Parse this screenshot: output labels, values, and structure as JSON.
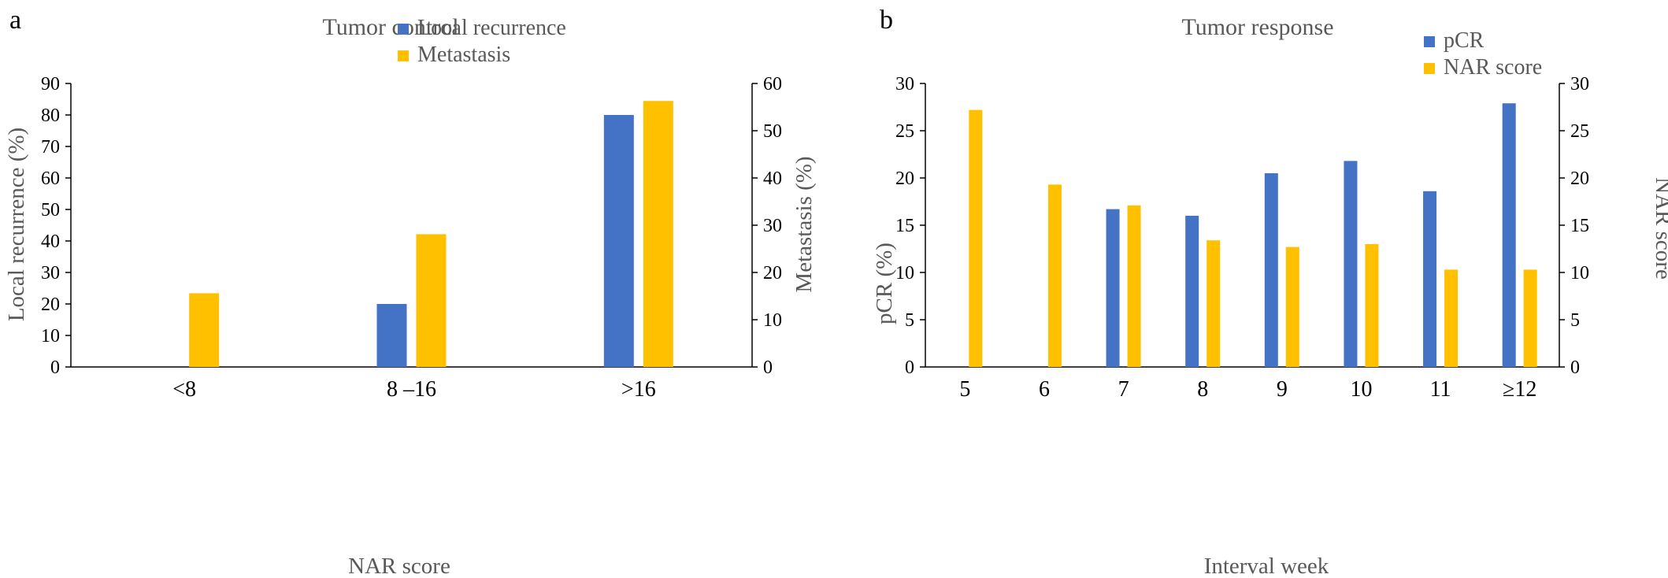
{
  "chart_data": [
    {
      "type": "bar",
      "panel": "a",
      "title": "Tumor control",
      "xlabel": "NAR score",
      "ylabel": "Local recurrence (%)",
      "y2label": "Metastasis (%)",
      "categories": [
        "<8",
        "8 –16",
        ">16"
      ],
      "ylim": [
        0,
        90
      ],
      "y2lim": [
        0,
        60
      ],
      "yticks": [
        "0",
        "10",
        "20",
        "30",
        "40",
        "50",
        "60",
        "70",
        "80",
        "90"
      ],
      "y2ticks": [
        "0",
        "10",
        "20",
        "30",
        "40",
        "50",
        "60"
      ],
      "legend_position": "top-right",
      "series": [
        {
          "name": "Local recurrence",
          "axis": "left",
          "color": "#4472C4",
          "values": [
            0,
            20,
            80
          ]
        },
        {
          "name": "Metastasis",
          "axis": "right",
          "color": "#FFC000",
          "values": [
            15.6,
            28.1,
            56.3
          ]
        }
      ]
    },
    {
      "type": "bar",
      "panel": "b",
      "title": "Tumor response",
      "xlabel": "Interval week",
      "ylabel": "pCR (%)",
      "y2label": "NAR score",
      "categories": [
        "5",
        "6",
        "7",
        "8",
        "9",
        "10",
        "11",
        "≥12"
      ],
      "ylim": [
        0,
        30
      ],
      "y2lim": [
        0,
        30
      ],
      "yticks": [
        "0",
        "5",
        "10",
        "15",
        "20",
        "25",
        "30"
      ],
      "y2ticks": [
        "0",
        "5",
        "10",
        "15",
        "20",
        "25",
        "30"
      ],
      "legend_position": "top-right",
      "series": [
        {
          "name": "pCR",
          "axis": "left",
          "color": "#4472C4",
          "values": [
            0,
            0,
            16.7,
            16.0,
            20.5,
            21.8,
            18.6,
            27.9
          ]
        },
        {
          "name": "NAR score",
          "axis": "right",
          "color": "#FFC000",
          "values": [
            27.2,
            19.3,
            17.1,
            13.4,
            12.7,
            13.0,
            10.3,
            10.3
          ]
        }
      ]
    }
  ]
}
